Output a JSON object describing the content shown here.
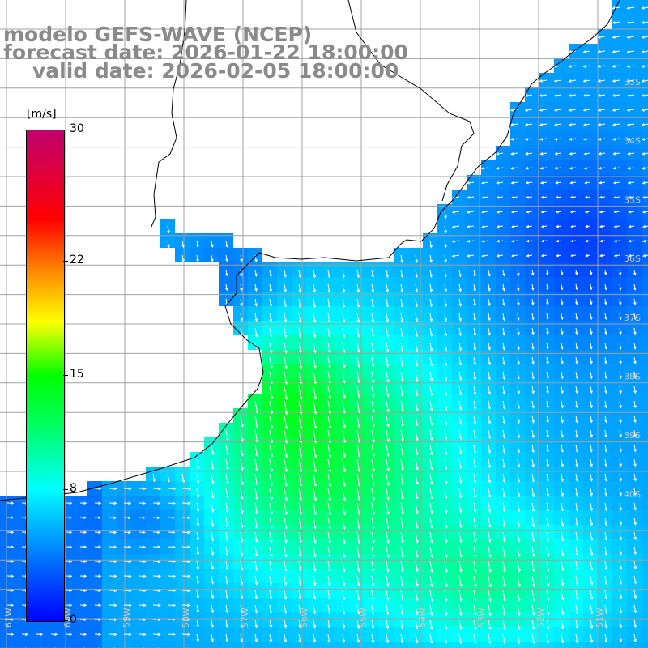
{
  "header": {
    "model_line": "modelo GEFS-WAVE (NCEP)",
    "forecast_line": "forecast date: 2026-01-22 18:00:00",
    "valid_line": "valid date: 2026-02-05 18:00:00"
  },
  "colorbar": {
    "unit": "[m/s]",
    "ticks": [
      {
        "label": "30",
        "value": 30
      },
      {
        "label": "22",
        "value": 22
      },
      {
        "label": "15",
        "value": 15
      },
      {
        "label": "8",
        "value": 8
      },
      {
        "label": "0",
        "value": 0
      }
    ],
    "range": [
      0,
      30
    ],
    "colors": [
      "#0000ff",
      "#0080ff",
      "#00ffff",
      "#00ff00",
      "#ffff00",
      "#ff8000",
      "#ff0000",
      "#c00070"
    ]
  },
  "map": {
    "lat_labels": [
      "33S",
      "34S",
      "35S",
      "36S",
      "37S",
      "38S",
      "39S",
      "40S"
    ],
    "lon_labels": [
      "61W",
      "60W",
      "59W",
      "58W",
      "57W",
      "56W",
      "55W",
      "54W",
      "53W",
      "52W",
      "51W"
    ],
    "land_color": "#ffffff",
    "grid_color": "#a0a0a0",
    "arrow_color": "#ffffff",
    "coast_color": "#000000"
  }
}
